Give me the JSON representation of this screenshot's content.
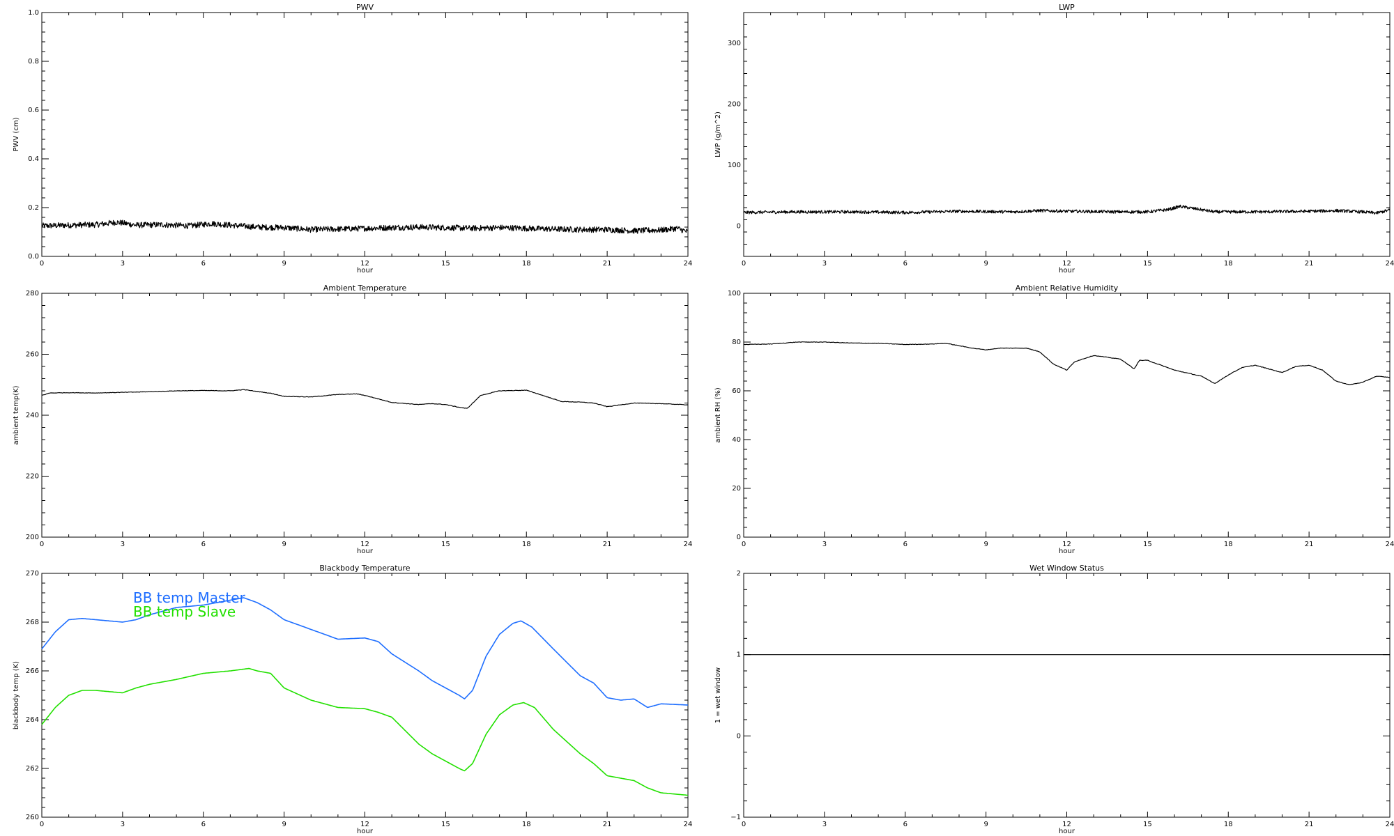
{
  "chart_data": [
    {
      "id": "pwv",
      "type": "line",
      "title": "PWV",
      "xlabel": "hour",
      "ylabel": "PWV (cm)",
      "xlim": [
        0,
        24
      ],
      "ylim": [
        0.0,
        1.0
      ],
      "xticks": [
        0,
        3,
        6,
        9,
        12,
        15,
        18,
        21,
        24
      ],
      "yticks": [
        "0.0",
        "0.2",
        "0.4",
        "0.6",
        "0.8",
        "1.0"
      ],
      "ytick_values": [
        0.0,
        0.2,
        0.4,
        0.6,
        0.8,
        1.0
      ],
      "noisy": true,
      "series": [
        {
          "color": "#000000",
          "noise": 0.012,
          "x": [
            0,
            1,
            2,
            2.8,
            3.5,
            4.5,
            5.5,
            6.3,
            7,
            8,
            9,
            10,
            11,
            12,
            13,
            14,
            15,
            16,
            17,
            18,
            19,
            20,
            21,
            22,
            23,
            23.6,
            24
          ],
          "y": [
            0.125,
            0.128,
            0.13,
            0.14,
            0.128,
            0.13,
            0.125,
            0.135,
            0.128,
            0.12,
            0.118,
            0.11,
            0.112,
            0.115,
            0.118,
            0.12,
            0.118,
            0.115,
            0.118,
            0.115,
            0.112,
            0.11,
            0.11,
            0.105,
            0.108,
            0.115,
            0.1
          ]
        }
      ]
    },
    {
      "id": "lwp",
      "type": "line",
      "title": "LWP",
      "xlabel": "hour",
      "ylabel": "LWP (g/m^2)",
      "xlim": [
        0,
        24
      ],
      "ylim": [
        -50,
        350
      ],
      "xticks": [
        0,
        3,
        6,
        9,
        12,
        15,
        18,
        21,
        24
      ],
      "yticks": [
        "0",
        "100",
        "200",
        "300"
      ],
      "ytick_values": [
        0,
        100,
        200,
        300
      ],
      "noisy": true,
      "series": [
        {
          "color": "#000000",
          "noise": 2.5,
          "x": [
            0,
            2,
            4,
            6,
            8,
            10,
            11,
            12,
            14,
            15,
            15.8,
            16.2,
            16.8,
            17.5,
            19,
            21,
            22,
            23,
            23.5,
            24
          ],
          "y": [
            22,
            23,
            23,
            22,
            24,
            23,
            25,
            24,
            23,
            23,
            27,
            32,
            28,
            23,
            23,
            24,
            25,
            23,
            21,
            26
          ]
        }
      ]
    },
    {
      "id": "ambient-temp",
      "type": "line",
      "title": "Ambient Temperature",
      "xlabel": "hour",
      "ylabel": "ambient temp(K)",
      "xlim": [
        0,
        24
      ],
      "ylim": [
        200,
        280
      ],
      "xticks": [
        0,
        3,
        6,
        9,
        12,
        15,
        18,
        21,
        24
      ],
      "yticks": [
        "200",
        "220",
        "240",
        "260",
        "280"
      ],
      "ytick_values": [
        200,
        220,
        240,
        260,
        280
      ],
      "noisy": false,
      "series": [
        {
          "color": "#000000",
          "x": [
            0,
            0.3,
            1,
            2,
            3,
            4,
            5,
            6,
            7,
            7.5,
            8.5,
            9,
            10,
            11,
            11.7,
            12,
            13,
            14,
            14.5,
            15,
            15.5,
            15.8,
            16.3,
            17,
            18,
            18.5,
            19.3,
            20,
            20.5,
            21,
            22,
            23,
            24
          ],
          "y": [
            246.5,
            247.3,
            247.4,
            247.3,
            247.5,
            247.7,
            248.0,
            248.1,
            248.0,
            248.4,
            247.2,
            246.2,
            246.0,
            246.8,
            247.0,
            246.5,
            244.2,
            243.5,
            243.8,
            243.5,
            242.6,
            242.2,
            246.5,
            248.0,
            248.2,
            246.8,
            244.5,
            244.3,
            244.0,
            242.8,
            244.0,
            243.8,
            243.4
          ]
        }
      ]
    },
    {
      "id": "ambient-rh",
      "type": "line",
      "title": "Ambient Relative Humidity",
      "xlabel": "hour",
      "ylabel": "ambient RH (%)",
      "xlim": [
        0,
        24
      ],
      "ylim": [
        0,
        100
      ],
      "xticks": [
        0,
        3,
        6,
        9,
        12,
        15,
        18,
        21,
        24
      ],
      "yticks": [
        "0",
        "20",
        "40",
        "60",
        "80",
        "100"
      ],
      "ytick_values": [
        0,
        20,
        40,
        60,
        80,
        100
      ],
      "noisy": false,
      "series": [
        {
          "color": "#000000",
          "x": [
            0,
            1,
            2,
            3,
            4,
            5,
            6,
            7,
            7.5,
            8.5,
            9,
            9.5,
            10.5,
            11,
            11.5,
            12,
            12.3,
            13,
            14,
            14.5,
            14.7,
            15,
            16,
            17,
            17.5,
            18,
            18.5,
            19,
            20,
            20.5,
            21,
            21.5,
            22,
            22.5,
            23,
            23.5,
            24
          ],
          "y": [
            79,
            79.2,
            80,
            80,
            79.6,
            79.5,
            79.0,
            79.2,
            79.5,
            77.5,
            76.8,
            77.5,
            77.5,
            76.0,
            71.0,
            68.5,
            72.0,
            74.5,
            73.0,
            69.0,
            72.5,
            72.5,
            68.5,
            66.0,
            63.0,
            66.5,
            69.5,
            70.5,
            67.5,
            70.0,
            70.5,
            68.5,
            64.0,
            62.5,
            63.5,
            66.0,
            65.5
          ]
        }
      ]
    },
    {
      "id": "blackbody-temp",
      "type": "line",
      "title": "Blackbody Temperature",
      "xlabel": "hour",
      "ylabel": "blackbody temp (K)",
      "xlim": [
        0,
        24
      ],
      "ylim": [
        260,
        270
      ],
      "xticks": [
        0,
        3,
        6,
        9,
        12,
        15,
        18,
        21,
        24
      ],
      "yticks": [
        "260",
        "262",
        "264",
        "266",
        "268",
        "270"
      ],
      "ytick_values": [
        260,
        262,
        264,
        266,
        268,
        270
      ],
      "noisy": false,
      "legend": [
        "BB temp Master",
        "BB temp Slave"
      ],
      "series": [
        {
          "name": "BB temp Master",
          "color": "#1e6eff",
          "x": [
            0,
            0.5,
            1,
            1.5,
            2,
            2.5,
            3,
            3.5,
            4,
            5,
            6,
            7,
            7.5,
            8,
            8.5,
            9,
            10,
            11,
            12,
            12.5,
            13,
            14,
            14.5,
            15,
            15.5,
            15.7,
            16,
            16.5,
            17,
            17.5,
            17.8,
            18.2,
            19,
            20,
            20.5,
            21,
            21.5,
            22,
            22.5,
            23,
            24
          ],
          "y": [
            266.9,
            267.6,
            268.1,
            268.15,
            268.1,
            268.05,
            268.0,
            268.1,
            268.3,
            268.6,
            268.7,
            268.9,
            269.0,
            268.8,
            268.5,
            268.1,
            267.7,
            267.3,
            267.35,
            267.2,
            266.7,
            266.0,
            265.6,
            265.3,
            265.0,
            264.85,
            265.2,
            266.6,
            267.5,
            267.95,
            268.05,
            267.8,
            266.9,
            265.8,
            265.5,
            264.9,
            264.8,
            264.85,
            264.5,
            264.65,
            264.6
          ]
        },
        {
          "name": "BB temp Slave",
          "color": "#22e000",
          "x": [
            0,
            0.5,
            1,
            1.5,
            2,
            2.5,
            3,
            3.5,
            4,
            5,
            6,
            7,
            7.7,
            8,
            8.5,
            9,
            10,
            11,
            12,
            12.5,
            13,
            14,
            14.5,
            15,
            15.5,
            15.7,
            16,
            16.5,
            17,
            17.5,
            17.9,
            18.3,
            19,
            20,
            20.5,
            21,
            21.5,
            22,
            22.5,
            23,
            24
          ],
          "y": [
            263.8,
            264.5,
            265.0,
            265.2,
            265.2,
            265.15,
            265.1,
            265.3,
            265.45,
            265.65,
            265.9,
            266.0,
            266.1,
            266.0,
            265.9,
            265.3,
            264.8,
            264.5,
            264.45,
            264.3,
            264.1,
            263.0,
            262.6,
            262.3,
            262.0,
            261.9,
            262.2,
            263.4,
            264.2,
            264.6,
            264.7,
            264.5,
            263.6,
            262.6,
            262.2,
            261.7,
            261.6,
            261.5,
            261.2,
            261.0,
            260.9
          ]
        }
      ]
    },
    {
      "id": "wet-window",
      "type": "line",
      "title": "Wet Window Status",
      "xlabel": "hour",
      "ylabel": "1 = wet window",
      "xlim": [
        0,
        24
      ],
      "ylim": [
        -1,
        2
      ],
      "xticks": [
        0,
        3,
        6,
        9,
        12,
        15,
        18,
        21,
        24
      ],
      "yticks": [
        "−1",
        "0",
        "1",
        "2"
      ],
      "ytick_values": [
        -1,
        0,
        1,
        2
      ],
      "noisy": false,
      "series": [
        {
          "color": "#000000",
          "x": [
            0,
            24
          ],
          "y": [
            1,
            1
          ]
        }
      ]
    }
  ]
}
